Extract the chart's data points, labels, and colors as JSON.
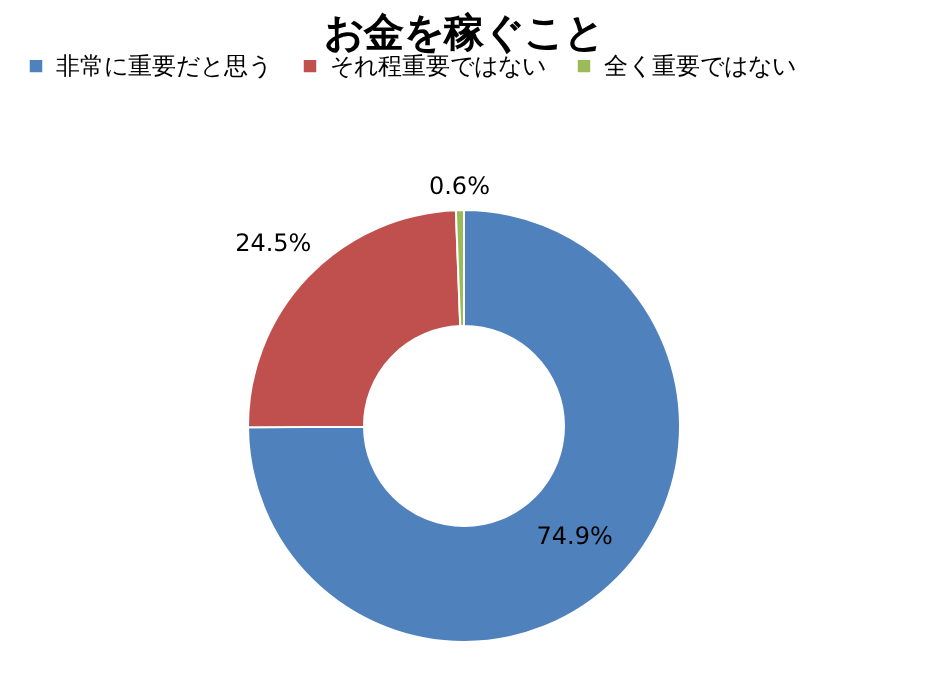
{
  "chart_data": {
    "type": "donut",
    "title": "お金を稼ぐこと",
    "categories": [
      "非常に重要だと思う",
      "それ程重要ではない",
      "全く重要ではない"
    ],
    "values": [
      74.9,
      24.5,
      0.6
    ],
    "colors": [
      "#4f81bd",
      "#c0504d",
      "#9bbb59"
    ],
    "value_labels": [
      "74.9%",
      "24.5%",
      "0.6%"
    ],
    "legend": "top"
  }
}
